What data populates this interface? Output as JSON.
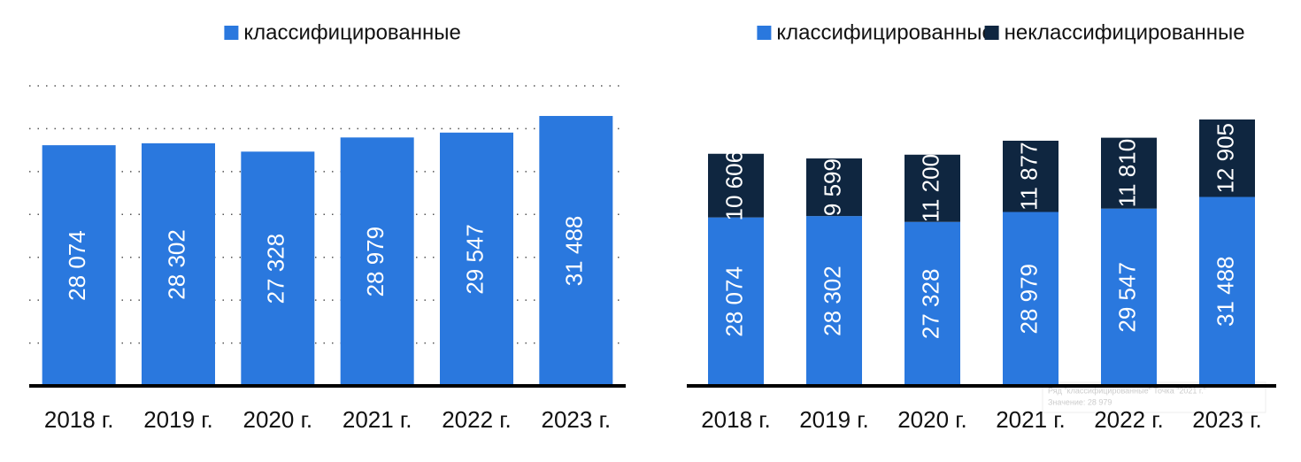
{
  "chart_data": [
    {
      "type": "bar",
      "categories": [
        "2018 г.",
        "2019 г.",
        "2020 г.",
        "2021 г.",
        "2022 г.",
        "2023 г."
      ],
      "series": [
        {
          "name": "классифицированные",
          "color": "#2a78de",
          "values": [
            28074,
            28302,
            27328,
            28979,
            29547,
            31488
          ],
          "value_labels": [
            "28 074",
            "28 302",
            "27 328",
            "28 979",
            "29 547",
            "31 488"
          ]
        }
      ],
      "ylim": [
        0,
        35000
      ],
      "yticks": [
        0,
        5000,
        10000,
        15000,
        20000,
        25000,
        30000,
        35000
      ],
      "grid": true
    },
    {
      "type": "stacked-bar",
      "categories": [
        "2018 г.",
        "2019 г.",
        "2020 г.",
        "2021 г.",
        "2022 г.",
        "2023 г."
      ],
      "series": [
        {
          "name": "классифицированные",
          "color": "#2a78de",
          "values": [
            28074,
            28302,
            27328,
            28979,
            29547,
            31488
          ],
          "value_labels": [
            "28 074",
            "28 302",
            "27 328",
            "28 979",
            "29 547",
            "31 488"
          ]
        },
        {
          "name": "неклассифицированные",
          "color": "#0f2640",
          "values": [
            10606,
            9599,
            11200,
            11877,
            11810,
            12905
          ],
          "value_labels": [
            "10 606",
            "9 599",
            "11 200",
            "11 877",
            "11 810",
            "12 905"
          ]
        }
      ],
      "ylim": [
        0,
        50000
      ],
      "grid": false
    }
  ],
  "tooltip": {
    "series_line": "Ряд \"классифицированные\" Точка \"2021 г.\"",
    "value_line": "Значение: 28 979"
  }
}
